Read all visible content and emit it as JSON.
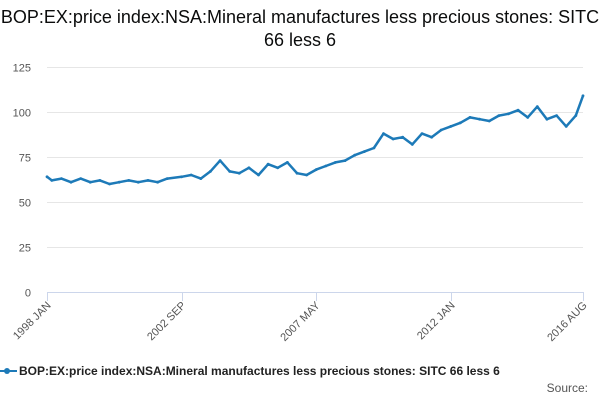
{
  "colors": {
    "series": "#1d7ab8",
    "grid": "#e6e6e6",
    "axis": "#ccd6eb",
    "text": "#0b0c0c",
    "tick_text": "#555555"
  },
  "source": "Source:",
  "chart_data": {
    "type": "line",
    "title": "BOP:EX:price index:NSA:Mineral manufactures less precious stones: SITC 66 less 6",
    "xlabel": "",
    "ylabel": "",
    "x_range": [
      "1998 JAN",
      "2016 AUG"
    ],
    "x_ticks": [
      "1998 JAN",
      "2002 SEP",
      "2007 MAY",
      "2012 JAN",
      "2016 AUG"
    ],
    "y_ticks": [
      0,
      25,
      50,
      75,
      100,
      125
    ],
    "ylim": [
      0,
      125
    ],
    "grid": true,
    "legend": "bottom",
    "series": [
      {
        "name": "BOP:EX:price index:NSA:Mineral manufactures less precious stones: SITC 66 less 6",
        "x": [
          "1998 JAN",
          "1998 MAR",
          "1998 JUL",
          "1998 NOV",
          "1999 MAR",
          "1999 JUL",
          "1999 NOV",
          "2000 MAR",
          "2000 JUL",
          "2000 NOV",
          "2001 MAR",
          "2001 JUL",
          "2001 NOV",
          "2002 MAR",
          "2002 SEP",
          "2003 JAN",
          "2003 MAY",
          "2003 SEP",
          "2004 JAN",
          "2004 MAY",
          "2004 SEP",
          "2005 JAN",
          "2005 MAY",
          "2005 SEP",
          "2006 JAN",
          "2006 MAY",
          "2006 SEP",
          "2007 JAN",
          "2007 MAY",
          "2007 SEP",
          "2008 JAN",
          "2008 MAY",
          "2008 SEP",
          "2009 JAN",
          "2009 MAY",
          "2009 SEP",
          "2010 JAN",
          "2010 MAY",
          "2010 SEP",
          "2011 JAN",
          "2011 MAY",
          "2011 SEP",
          "2012 JAN",
          "2012 MAY",
          "2012 SEP",
          "2013 JAN",
          "2013 MAY",
          "2013 SEP",
          "2014 JAN",
          "2014 MAY",
          "2014 SEP",
          "2015 JAN",
          "2015 MAY",
          "2015 SEP",
          "2016 JAN",
          "2016 MAY",
          "2016 AUG"
        ],
        "values": [
          64,
          62,
          63,
          61,
          63,
          61,
          62,
          60,
          61,
          62,
          61,
          62,
          61,
          63,
          64,
          65,
          63,
          67,
          73,
          67,
          66,
          69,
          65,
          71,
          69,
          72,
          66,
          65,
          68,
          70,
          72,
          73,
          76,
          78,
          80,
          88,
          85,
          86,
          82,
          88,
          86,
          90,
          92,
          94,
          97,
          96,
          95,
          98,
          99,
          101,
          97,
          103,
          96,
          98,
          92,
          98,
          109
        ]
      }
    ]
  }
}
